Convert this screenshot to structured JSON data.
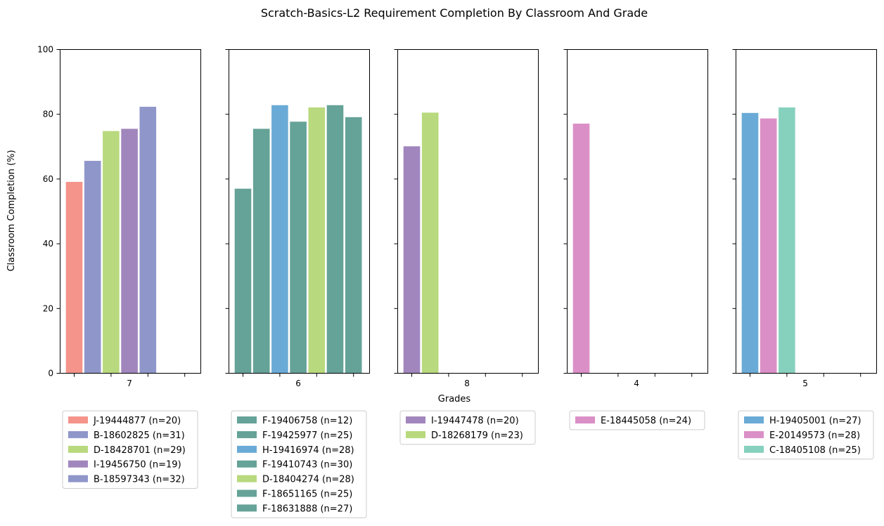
{
  "chart_data": {
    "type": "bar",
    "title": "Scratch-Basics-L2 Requirement Completion By Classroom And Grade",
    "ylabel": "Classroom Completion (%)",
    "xlabel": "Grades",
    "ylim": [
      0,
      100
    ],
    "yticks": [
      0,
      20,
      40,
      60,
      80,
      100
    ],
    "shared_y": true,
    "slots_per_panel": 7,
    "colors": {
      "salmon": "#f4948a",
      "periwinkle": "#8f96c9",
      "lime": "#b8d97d",
      "purple": "#a186bd",
      "teal": "#65a298",
      "blue": "#6aaad6",
      "pink": "#db8fc7",
      "mint": "#86d1bd"
    },
    "panels": [
      {
        "grade": "7",
        "series": [
          {
            "name": "J-19444877 (n=20)",
            "value": 59.0,
            "color": "#f4948a"
          },
          {
            "name": "B-18602825 (n=31)",
            "value": 65.5,
            "color": "#8f96c9"
          },
          {
            "name": "D-18428701 (n=29)",
            "value": 74.7,
            "color": "#b8d97d"
          },
          {
            "name": "I-19456750 (n=19)",
            "value": 75.4,
            "color": "#a186bd"
          },
          {
            "name": "B-18597343 (n=32)",
            "value": 82.2,
            "color": "#8f96c9"
          }
        ]
      },
      {
        "grade": "6",
        "series": [
          {
            "name": "F-19406758 (n=12)",
            "value": 56.9,
            "color": "#65a298"
          },
          {
            "name": "F-19425977 (n=25)",
            "value": 75.4,
            "color": "#65a298"
          },
          {
            "name": "H-19416974 (n=28)",
            "value": 82.7,
            "color": "#6aaad6"
          },
          {
            "name": "F-19410743 (n=30)",
            "value": 77.6,
            "color": "#65a298"
          },
          {
            "name": "D-18404274 (n=28)",
            "value": 82.0,
            "color": "#b8d97d"
          },
          {
            "name": "F-18651165 (n=25)",
            "value": 82.7,
            "color": "#65a298"
          },
          {
            "name": "F-18631888 (n=27)",
            "value": 79.0,
            "color": "#65a298"
          }
        ]
      },
      {
        "grade": "8",
        "series": [
          {
            "name": "I-19447478 (n=20)",
            "value": 70.0,
            "color": "#a186bd"
          },
          {
            "name": "D-18268179 (n=23)",
            "value": 80.4,
            "color": "#b8d97d"
          }
        ]
      },
      {
        "grade": "4",
        "series": [
          {
            "name": "E-18445058 (n=24)",
            "value": 77.0,
            "color": "#db8fc7"
          }
        ]
      },
      {
        "grade": "5",
        "series": [
          {
            "name": "H-19405001 (n=27)",
            "value": 80.3,
            "color": "#6aaad6"
          },
          {
            "name": "E-20149573 (n=28)",
            "value": 78.6,
            "color": "#db8fc7"
          },
          {
            "name": "C-18405108 (n=25)",
            "value": 82.0,
            "color": "#86d1bd"
          }
        ]
      }
    ]
  }
}
